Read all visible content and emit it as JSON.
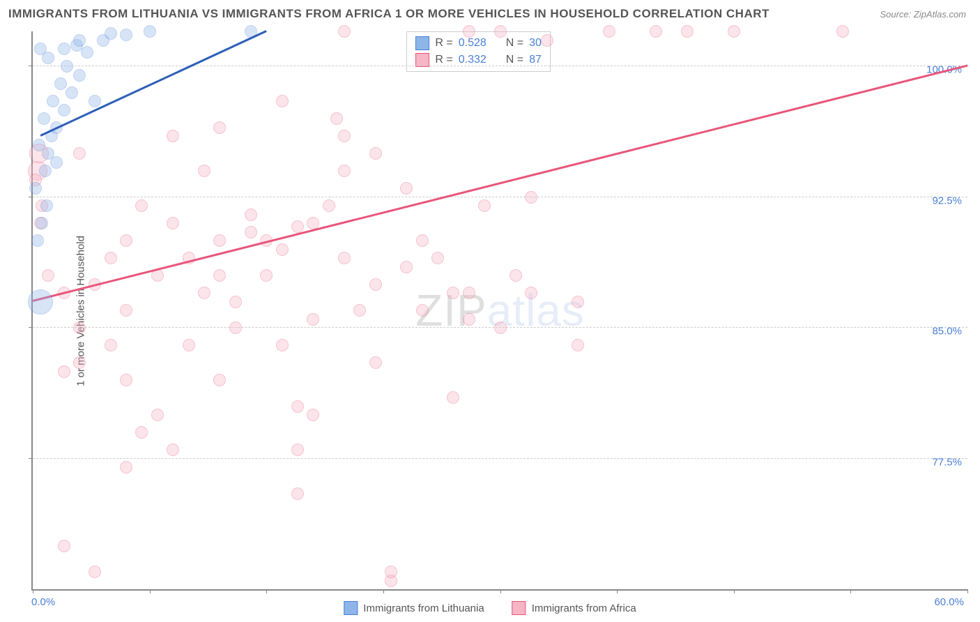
{
  "title": "IMMIGRANTS FROM LITHUANIA VS IMMIGRANTS FROM AFRICA 1 OR MORE VEHICLES IN HOUSEHOLD CORRELATION CHART",
  "source": "Source: ZipAtlas.com",
  "watermark": {
    "part1": "ZIP",
    "part2": "atlas"
  },
  "ylabel": "1 or more Vehicles in Household",
  "chart": {
    "type": "scatter",
    "xlim": [
      0,
      60
    ],
    "ylim": [
      70,
      102
    ],
    "y_ticks": [
      77.5,
      85.0,
      92.5,
      100.0
    ],
    "y_tick_labels": [
      "77.5%",
      "85.0%",
      "92.5%",
      "100.0%"
    ],
    "x_ticks": [
      0,
      7.5,
      15,
      22.5,
      30,
      37.5,
      45,
      52.5,
      60
    ],
    "x_min_label": "0.0%",
    "x_max_label": "60.0%",
    "grid_color": "#cccccc",
    "axis_color": "#888888",
    "point_radius": 9,
    "point_opacity": 0.35,
    "axis_label_color": "#4a7fd8"
  },
  "series": [
    {
      "name": "Immigrants from Lithuania",
      "fill": "#8db5e8",
      "stroke": "#4a7fd8",
      "line_color": "#2d5fb8",
      "stats": {
        "R": "0.528",
        "N": "30"
      },
      "trend": {
        "x1": 0.5,
        "y1": 96,
        "x2": 15,
        "y2": 102
      },
      "points": [
        [
          0.5,
          86.5,
          18
        ],
        [
          0.3,
          90
        ],
        [
          0.6,
          91
        ],
        [
          0.2,
          93
        ],
        [
          0.8,
          94
        ],
        [
          1.0,
          95
        ],
        [
          0.4,
          95.5
        ],
        [
          1.2,
          96
        ],
        [
          1.5,
          96.5
        ],
        [
          0.7,
          97
        ],
        [
          2.0,
          97.5
        ],
        [
          1.3,
          98
        ],
        [
          2.5,
          98.5
        ],
        [
          1.8,
          99
        ],
        [
          3.0,
          99.5
        ],
        [
          2.2,
          100
        ],
        [
          1.0,
          100.5
        ],
        [
          3.5,
          100.8
        ],
        [
          0.5,
          101
        ],
        [
          2.8,
          101.2
        ],
        [
          4.5,
          101.5
        ],
        [
          6.0,
          101.8
        ],
        [
          5.0,
          101.9
        ],
        [
          7.5,
          102
        ],
        [
          3.0,
          101.5
        ],
        [
          1.5,
          94.5
        ],
        [
          0.9,
          92
        ],
        [
          2.0,
          101
        ],
        [
          4.0,
          98
        ],
        [
          14.0,
          102
        ]
      ]
    },
    {
      "name": "Immigrants from Africa",
      "fill": "#f5b5c5",
      "stroke": "#e8557a",
      "line_color": "#e8557a",
      "stats": {
        "R": "0.332",
        "N": "87"
      },
      "trend": {
        "x1": 0,
        "y1": 86.5,
        "x2": 60,
        "y2": 100
      },
      "points": [
        [
          0.3,
          94,
          14
        ],
        [
          0.4,
          95,
          14
        ],
        [
          0.2,
          93.5
        ],
        [
          0.6,
          92
        ],
        [
          0.5,
          91
        ],
        [
          6,
          86
        ],
        [
          12,
          96.5
        ],
        [
          5,
          84
        ],
        [
          6,
          82
        ],
        [
          3,
          85
        ],
        [
          2,
          87
        ],
        [
          8,
          88
        ],
        [
          10,
          89
        ],
        [
          12,
          90
        ],
        [
          14,
          90.5
        ],
        [
          11,
          87
        ],
        [
          13,
          85
        ],
        [
          15,
          88
        ],
        [
          16,
          89.5
        ],
        [
          17,
          90.8
        ],
        [
          18,
          85.5
        ],
        [
          19,
          92
        ],
        [
          20,
          94
        ],
        [
          19.5,
          97
        ],
        [
          21,
          86
        ],
        [
          20,
          102
        ],
        [
          23,
          70.5
        ],
        [
          9,
          78
        ],
        [
          22,
          87.5
        ],
        [
          24,
          88.5
        ],
        [
          7,
          79
        ],
        [
          17,
          78
        ],
        [
          14,
          91.5
        ],
        [
          25,
          86
        ],
        [
          26,
          89
        ],
        [
          27,
          87
        ],
        [
          28,
          102
        ],
        [
          6,
          77
        ],
        [
          20,
          96
        ],
        [
          13,
          86.5
        ],
        [
          16,
          84
        ],
        [
          30,
          102
        ],
        [
          32,
          87
        ],
        [
          33,
          101.5
        ],
        [
          35,
          86.5
        ],
        [
          37,
          102
        ],
        [
          40,
          102
        ],
        [
          42,
          102
        ],
        [
          45,
          102
        ],
        [
          12,
          88
        ],
        [
          15,
          90
        ],
        [
          18,
          91
        ],
        [
          22,
          95
        ],
        [
          17,
          80.5
        ],
        [
          9,
          91
        ],
        [
          10,
          84
        ],
        [
          20,
          89
        ],
        [
          22,
          83
        ],
        [
          25,
          90
        ],
        [
          8,
          80
        ],
        [
          2,
          72.5
        ],
        [
          12,
          82
        ],
        [
          17,
          75.5
        ],
        [
          18,
          80
        ],
        [
          6,
          90
        ],
        [
          4,
          87.5
        ],
        [
          30,
          85
        ],
        [
          32,
          92.5
        ],
        [
          35,
          84
        ],
        [
          52,
          102
        ],
        [
          4,
          71
        ],
        [
          23,
          71
        ],
        [
          11,
          94
        ],
        [
          9,
          96
        ],
        [
          3,
          83
        ],
        [
          5,
          89
        ],
        [
          7,
          92
        ],
        [
          27,
          81
        ],
        [
          16,
          98
        ],
        [
          24,
          93
        ],
        [
          28,
          85.5
        ],
        [
          31,
          88
        ],
        [
          2,
          82.5
        ],
        [
          29,
          92
        ],
        [
          3,
          95
        ],
        [
          1,
          88
        ],
        [
          28,
          87
        ]
      ]
    }
  ],
  "legend_labels": {
    "series1": "Immigrants from Lithuania",
    "series2": "Immigrants from Africa"
  },
  "stats_labels": {
    "R": "R =",
    "N": "N ="
  }
}
